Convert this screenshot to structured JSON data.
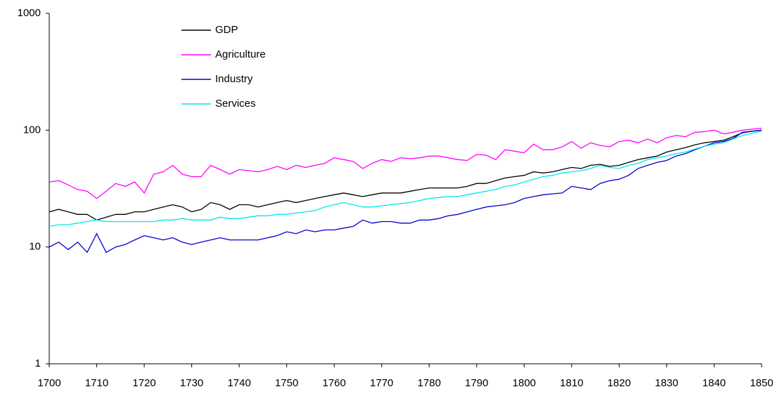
{
  "chart_data": {
    "type": "line",
    "yscale": "log",
    "x": [
      1700,
      1702,
      1704,
      1706,
      1708,
      1710,
      1712,
      1714,
      1716,
      1718,
      1720,
      1722,
      1724,
      1726,
      1728,
      1730,
      1732,
      1734,
      1736,
      1738,
      1740,
      1742,
      1744,
      1746,
      1748,
      1750,
      1752,
      1754,
      1756,
      1758,
      1760,
      1762,
      1764,
      1766,
      1768,
      1770,
      1772,
      1774,
      1776,
      1778,
      1780,
      1782,
      1784,
      1786,
      1788,
      1790,
      1792,
      1794,
      1796,
      1798,
      1800,
      1802,
      1804,
      1806,
      1808,
      1810,
      1812,
      1814,
      1816,
      1818,
      1820,
      1822,
      1824,
      1826,
      1828,
      1830,
      1832,
      1834,
      1836,
      1838,
      1840,
      1842,
      1844,
      1846,
      1848,
      1850
    ],
    "series": [
      {
        "name": "GDP",
        "color": "#000000",
        "values": [
          20,
          21,
          20,
          19,
          19,
          17,
          18,
          19,
          19,
          20,
          20,
          21,
          22,
          23,
          22,
          20,
          21,
          24,
          23,
          21,
          23,
          23,
          22,
          23,
          24,
          25,
          24,
          25,
          26,
          27,
          28,
          29,
          28,
          27,
          28,
          29,
          29,
          29,
          30,
          31,
          32,
          32,
          32,
          32,
          33,
          35,
          35,
          37,
          39,
          40,
          41,
          44,
          43,
          44,
          46,
          48,
          47,
          50,
          51,
          49,
          50,
          53,
          56,
          58,
          60,
          65,
          68,
          71,
          75,
          78,
          80,
          82,
          88,
          95,
          98,
          100
        ]
      },
      {
        "name": "Agriculture",
        "color": "#ff00ff",
        "values": [
          36,
          37,
          34,
          31,
          30,
          26,
          30,
          35,
          33,
          36,
          29,
          42,
          44,
          50,
          42,
          40,
          40,
          50,
          46,
          42,
          46,
          45,
          44,
          46,
          49,
          46,
          50,
          48,
          50,
          52,
          58,
          56,
          54,
          47,
          52,
          56,
          54,
          58,
          57,
          58,
          60,
          60,
          58,
          56,
          55,
          62,
          61,
          56,
          68,
          66,
          64,
          76,
          68,
          68,
          72,
          80,
          70,
          78,
          74,
          72,
          80,
          82,
          78,
          84,
          78,
          86,
          90,
          88,
          96,
          97,
          100,
          93,
          96,
          100,
          102,
          104
        ]
      },
      {
        "name": "Industry",
        "color": "#0000cc",
        "values": [
          10,
          11,
          9.5,
          11,
          9,
          13,
          9,
          10,
          10.5,
          11.5,
          12.5,
          12,
          11.5,
          12,
          11,
          10.5,
          11,
          11.5,
          12,
          11.5,
          11.5,
          11.5,
          11.5,
          12,
          12.5,
          13.5,
          13,
          14,
          13.5,
          14,
          14,
          14.5,
          15,
          17,
          16,
          16.5,
          16.5,
          16,
          16,
          17,
          17,
          17.5,
          18.5,
          19,
          20,
          21,
          22,
          22.5,
          23,
          24,
          26,
          27,
          28,
          28.5,
          29,
          33,
          32,
          31,
          35,
          37,
          38,
          41,
          47,
          50,
          53,
          55,
          60,
          63,
          68,
          73,
          78,
          80,
          85,
          96,
          98,
          100
        ]
      },
      {
        "name": "Services",
        "color": "#00e5ee",
        "values": [
          15,
          15.5,
          15.5,
          16,
          16.5,
          17,
          16.5,
          16.5,
          16.5,
          16.5,
          16.5,
          16.5,
          17,
          17,
          17.5,
          17,
          17,
          17,
          18,
          17.5,
          17.5,
          18,
          18.5,
          18.5,
          19,
          19,
          19.5,
          20,
          20.5,
          22,
          23,
          24,
          23,
          22,
          22,
          22.5,
          23,
          23.5,
          24,
          25,
          26,
          26.5,
          27,
          27,
          28,
          29,
          30,
          31,
          33,
          34,
          36,
          38,
          40,
          41,
          43,
          44,
          45,
          47,
          50,
          48,
          47,
          50,
          52,
          56,
          58,
          60,
          63,
          65,
          69,
          73,
          76,
          78,
          84,
          90,
          94,
          98
        ]
      }
    ],
    "xlim": [
      1700,
      1850
    ],
    "xticks": [
      1700,
      1710,
      1720,
      1730,
      1740,
      1750,
      1760,
      1770,
      1780,
      1790,
      1800,
      1810,
      1820,
      1830,
      1840,
      1850
    ],
    "ylim": [
      1,
      1000
    ],
    "yticks": [
      1,
      10,
      100,
      1000
    ],
    "grid": false,
    "legend": "top-left"
  }
}
